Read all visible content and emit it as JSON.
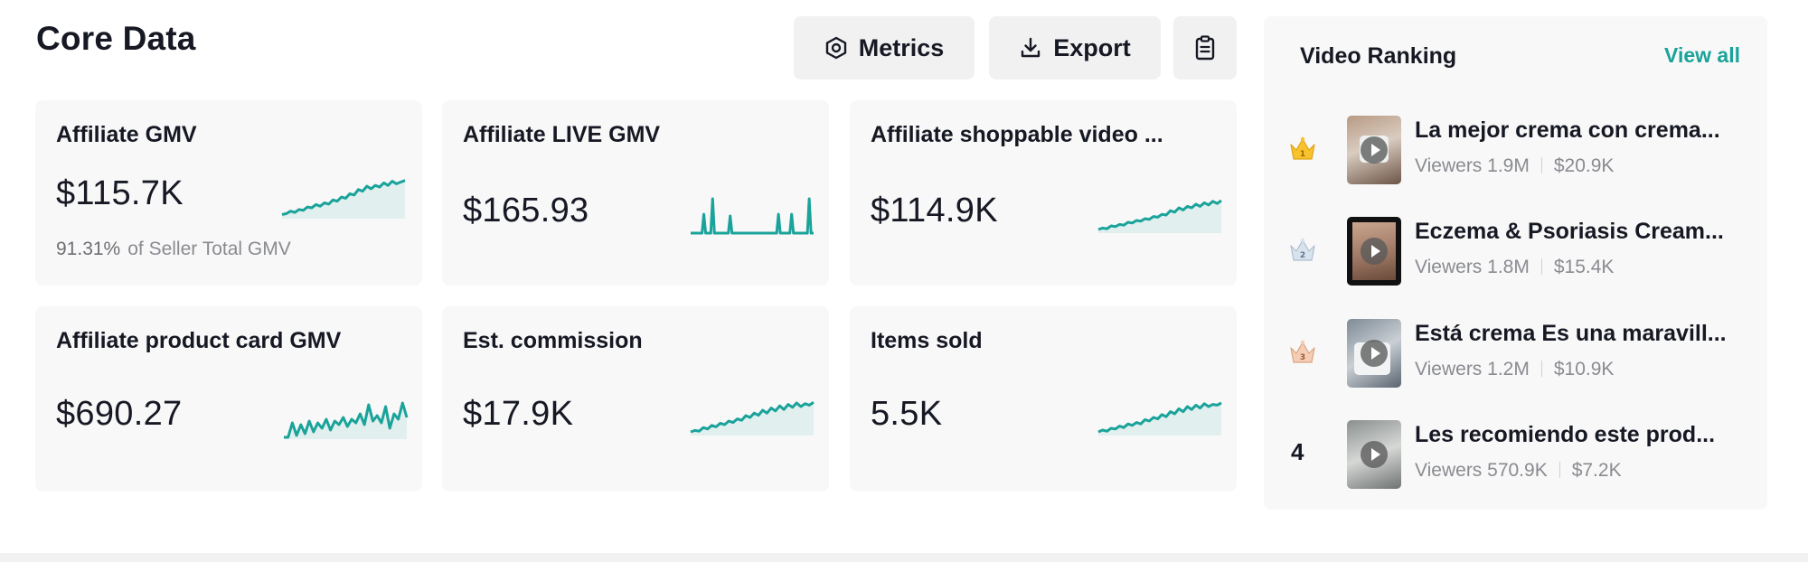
{
  "header": {
    "title": "Core Data",
    "metrics_label": "Metrics",
    "export_label": "Export"
  },
  "colors": {
    "accent": "#1aa39a",
    "card_bg": "#f8f8f8",
    "button_bg": "#f1f1f2",
    "muted_text": "#8a8b91"
  },
  "cards": [
    {
      "title": "Affiliate GMV",
      "value": "$115.7K",
      "sub_pct": "91.31%",
      "sub_text": "of Seller Total GMV",
      "trend": [
        0.1,
        0.12,
        0.18,
        0.15,
        0.22,
        0.2,
        0.28,
        0.26,
        0.34,
        0.3,
        0.38,
        0.35,
        0.45,
        0.42,
        0.52,
        0.49,
        0.6,
        0.57,
        0.7,
        0.66,
        0.78,
        0.72,
        0.8,
        0.76,
        0.86,
        0.8,
        0.9,
        0.84,
        0.88,
        0.92
      ]
    },
    {
      "title": "Affiliate LIVE GMV",
      "value": "$165.93",
      "trend": [
        0,
        0,
        0,
        0.55,
        0,
        1.0,
        0,
        0,
        0,
        0.5,
        0,
        0,
        0,
        0,
        0,
        0,
        0,
        0,
        0,
        0,
        0.55,
        0,
        0,
        0.55,
        0,
        0,
        0,
        1.0,
        0
      ]
    },
    {
      "title": "Affiliate shoppable video ...",
      "value": "$114.9K",
      "trend": [
        0.1,
        0.14,
        0.12,
        0.2,
        0.18,
        0.24,
        0.22,
        0.3,
        0.28,
        0.35,
        0.33,
        0.4,
        0.38,
        0.46,
        0.44,
        0.52,
        0.5,
        0.62,
        0.58,
        0.7,
        0.64,
        0.74,
        0.7,
        0.8,
        0.74,
        0.84,
        0.78,
        0.88,
        0.82,
        0.9
      ]
    },
    {
      "title": "Affiliate product card GMV",
      "value": "$690.27",
      "trend": [
        0.05,
        0.05,
        0.45,
        0.1,
        0.4,
        0.15,
        0.5,
        0.2,
        0.45,
        0.3,
        0.55,
        0.25,
        0.5,
        0.4,
        0.6,
        0.35,
        0.55,
        0.45,
        0.7,
        0.4,
        0.95,
        0.5,
        0.65,
        0.45,
        0.9,
        0.3,
        0.7,
        0.55,
        1.0,
        0.6
      ]
    },
    {
      "title": "Est. commission",
      "value": "$17.9K",
      "trend": [
        0.1,
        0.14,
        0.12,
        0.22,
        0.18,
        0.28,
        0.24,
        0.34,
        0.3,
        0.4,
        0.36,
        0.46,
        0.42,
        0.55,
        0.5,
        0.62,
        0.56,
        0.7,
        0.62,
        0.76,
        0.68,
        0.82,
        0.72,
        0.86,
        0.78,
        0.9,
        0.8,
        0.88,
        0.84,
        0.92
      ]
    },
    {
      "title": "Items sold",
      "value": "5.5K",
      "trend": [
        0.1,
        0.15,
        0.12,
        0.2,
        0.18,
        0.26,
        0.22,
        0.32,
        0.28,
        0.36,
        0.32,
        0.44,
        0.4,
        0.5,
        0.46,
        0.58,
        0.52,
        0.66,
        0.6,
        0.74,
        0.66,
        0.8,
        0.72,
        0.84,
        0.76,
        0.88,
        0.8,
        0.86,
        0.84,
        0.9
      ]
    }
  ],
  "ranking": {
    "title": "Video Ranking",
    "view_all": "View all",
    "items": [
      {
        "rank": "1",
        "badge": "gold-crown",
        "title": "La mejor crema con crema...",
        "viewers": "Viewers 1.9M",
        "revenue": "$20.9K"
      },
      {
        "rank": "2",
        "badge": "silver-crown",
        "title": "Eczema & Psoriasis Cream...",
        "viewers": "Viewers 1.8M",
        "revenue": "$15.4K"
      },
      {
        "rank": "3",
        "badge": "bronze-crown",
        "title": "Está crema Es una maravill...",
        "viewers": "Viewers 1.2M",
        "revenue": "$10.9K"
      },
      {
        "rank": "4",
        "badge": "",
        "title": "Les recomiendo este prod...",
        "viewers": "Viewers 570.9K",
        "revenue": "$7.2K"
      }
    ]
  }
}
